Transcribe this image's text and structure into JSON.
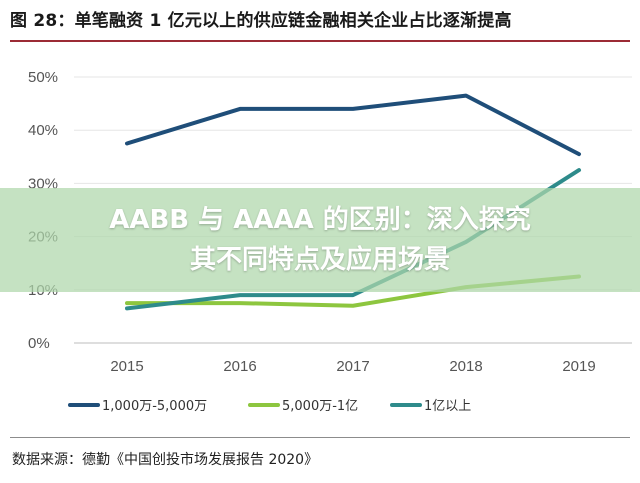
{
  "title": "图 28：单笔融资 1 亿元以上的供应链金融相关企业占比逐渐提高",
  "source": "数据来源：德勤《中国创投市场发展报告 2020》",
  "overlay": {
    "line1": "AABB 与 AAAA 的区别：深入探究",
    "line2": "其不同特点及应用场景"
  },
  "colors": {
    "series1": "#1f4e79",
    "series2": "#8dc63f",
    "series3": "#2e8b8b",
    "title_rule": "#9c2b35"
  },
  "chart_data": {
    "type": "line",
    "x": [
      "2015",
      "2016",
      "2017",
      "2018",
      "2019"
    ],
    "ylim": [
      0,
      50
    ],
    "yticks": [
      "0%",
      "10%",
      "20%",
      "30%",
      "40%",
      "50%"
    ],
    "legend_position": "bottom",
    "grid": true,
    "series": [
      {
        "name": "1,000万-5,000万",
        "values": [
          37.5,
          44,
          44,
          46.5,
          35.5
        ],
        "color": "#1f4e79"
      },
      {
        "name": "5,000万-1亿",
        "values": [
          7.5,
          7.5,
          7,
          10.5,
          12.5
        ],
        "color": "#8dc63f"
      },
      {
        "name": "1亿以上",
        "values": [
          6.5,
          9,
          9,
          19,
          32.5
        ],
        "color": "#2e8b8b"
      }
    ]
  }
}
